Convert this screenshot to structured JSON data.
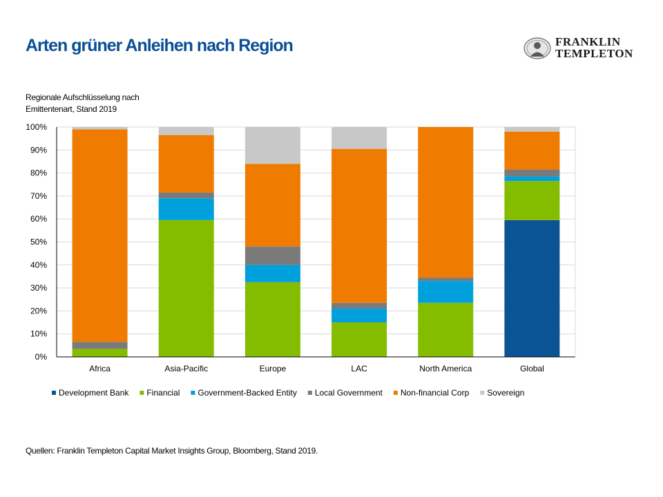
{
  "header": {
    "title": "Arten grüner Anleihen nach Region",
    "logo_line1": "FRANKLIN",
    "logo_line2": "TEMPLETON"
  },
  "subtitle_line1": "Regionale Aufschlüsselung nach",
  "subtitle_line2": "Emittentenart, Stand 2019",
  "source": "Quellen: Franklin Templeton Capital Market Insights Group, Bloomberg, Stand 2019.",
  "chart_data": {
    "type": "bar",
    "stacked": true,
    "categories": [
      "Africa",
      "Asia-Pacific",
      "Europe",
      "LAC",
      "North America",
      "Global"
    ],
    "ylim": [
      0,
      100
    ],
    "y_ticks": [
      "0%",
      "10%",
      "20%",
      "30%",
      "40%",
      "50%",
      "60%",
      "70%",
      "80%",
      "90%",
      "100%"
    ],
    "grid": true,
    "legend_position": "bottom",
    "series": [
      {
        "name": "Development Bank",
        "color": "#0a5394",
        "values": [
          0,
          0,
          0,
          0,
          0,
          59.5
        ]
      },
      {
        "name": "Financial",
        "color": "#84bd00",
        "values": [
          3.5,
          59.5,
          32.5,
          15,
          23.5,
          17
        ]
      },
      {
        "name": "Government-Backed Entity",
        "color": "#00a0dc",
        "values": [
          0,
          9.5,
          7.5,
          6,
          9.5,
          2
        ]
      },
      {
        "name": "Local Government",
        "color": "#7a7a7a",
        "values": [
          3,
          2.5,
          8,
          2.5,
          1.5,
          3
        ]
      },
      {
        "name": "Non-financial Corp",
        "color": "#ef7b00",
        "values": [
          92.5,
          25,
          36,
          67,
          65.5,
          16.5
        ]
      },
      {
        "name": "Sovereign",
        "color": "#c8c8c8",
        "values": [
          1,
          3.5,
          16,
          9.5,
          0,
          2
        ]
      }
    ]
  }
}
